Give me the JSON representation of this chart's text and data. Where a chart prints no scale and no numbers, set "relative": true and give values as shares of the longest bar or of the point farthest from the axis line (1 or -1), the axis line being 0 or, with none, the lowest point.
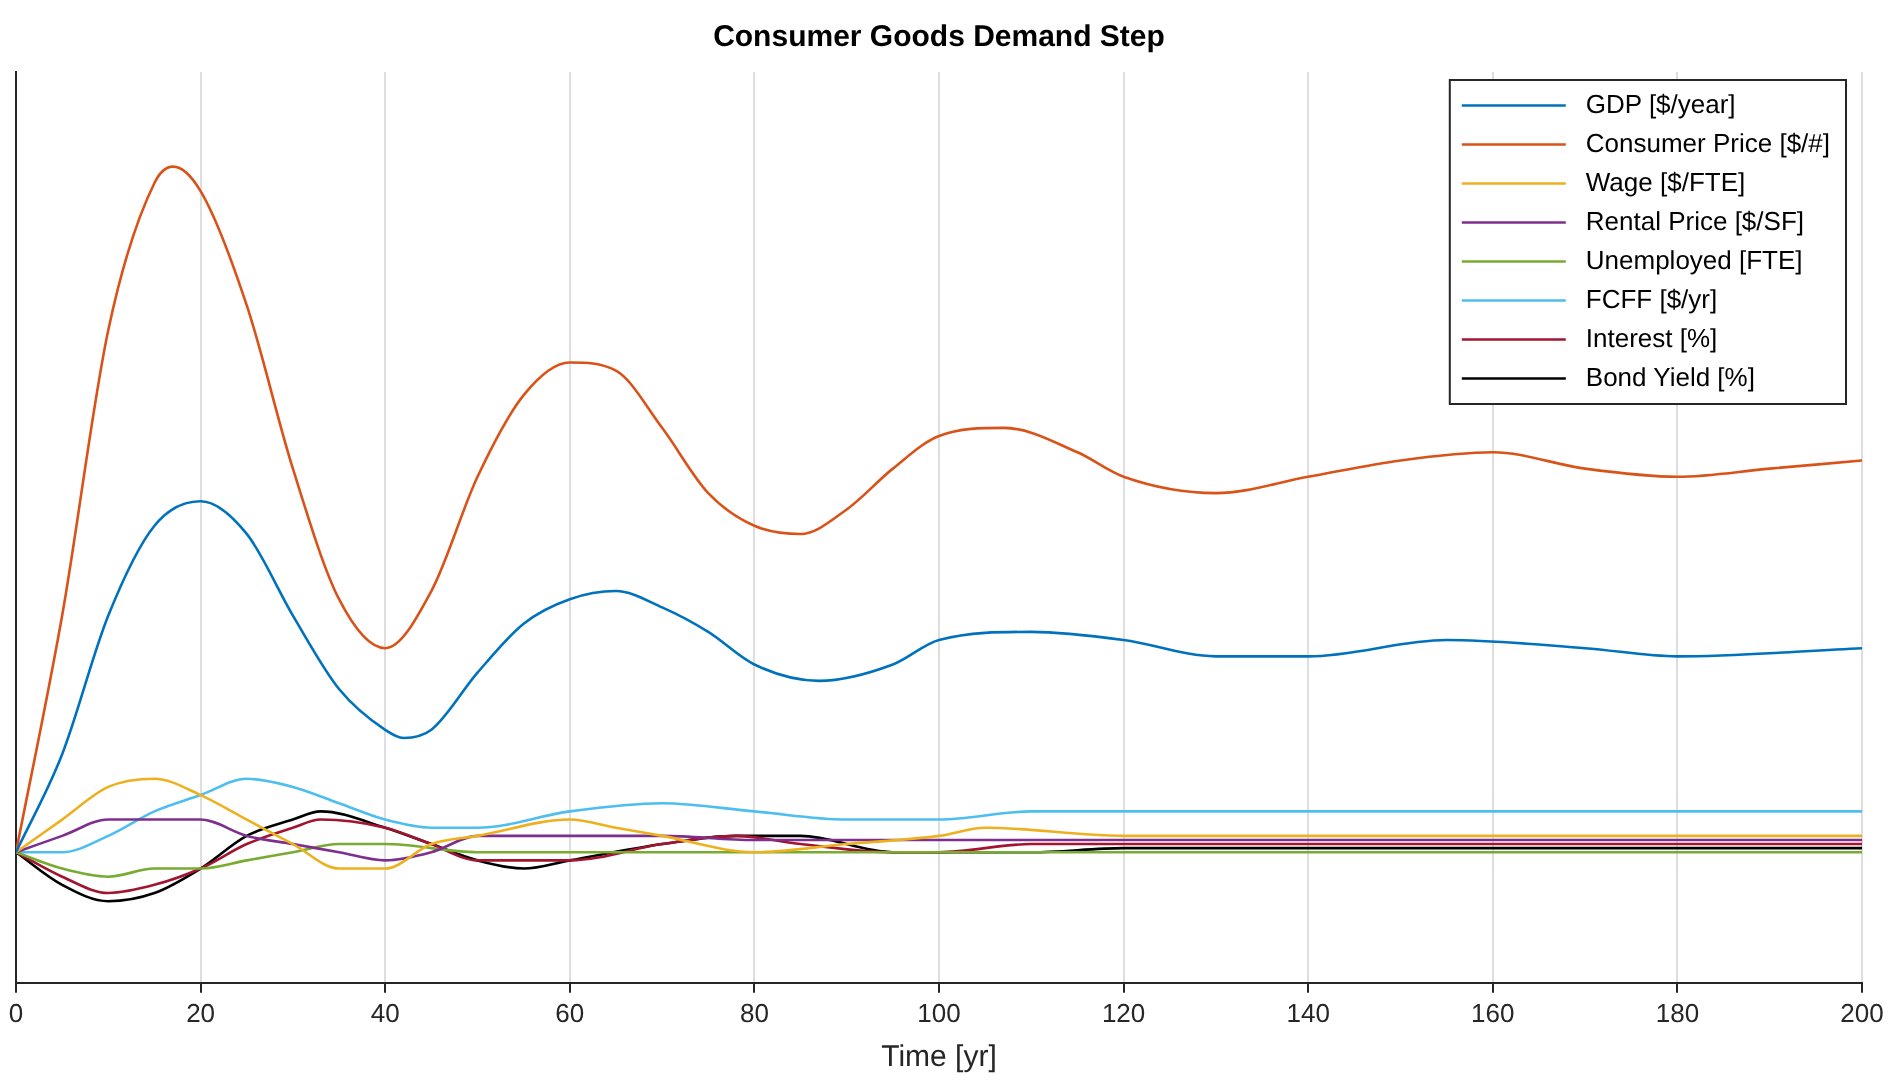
{
  "chart_data": {
    "type": "line",
    "title": "Consumer Goods Demand Step",
    "xlabel": "Time [yr]",
    "relative": true,
    "xlim": [
      0,
      200
    ],
    "xticks": [
      0,
      20,
      40,
      60,
      80,
      100,
      120,
      140,
      160,
      180,
      200
    ],
    "grid": "x",
    "legend": "top right",
    "marker": "none",
    "line_style": "solid",
    "series": [
      {
        "name": "GDP [$/year]",
        "color": "#0072bd",
        "x": [
          0,
          5,
          10,
          15,
          20,
          25,
          30,
          35,
          40,
          42,
          45,
          50,
          55,
          60,
          65,
          70,
          75,
          80,
          87,
          95,
          100,
          110,
          120,
          130,
          140,
          155,
          170,
          180,
          200
        ],
        "values": [
          0.16,
          0.28,
          0.45,
          0.56,
          0.59,
          0.55,
          0.45,
          0.36,
          0.31,
          0.3,
          0.31,
          0.38,
          0.44,
          0.47,
          0.48,
          0.46,
          0.43,
          0.39,
          0.37,
          0.39,
          0.42,
          0.43,
          0.42,
          0.4,
          0.4,
          0.42,
          0.41,
          0.4,
          0.41
        ]
      },
      {
        "name": "Consumer Price [$/#]",
        "color": "#d95319",
        "x": [
          0,
          5,
          10,
          15,
          17,
          20,
          25,
          30,
          35,
          40,
          45,
          50,
          55,
          60,
          65,
          70,
          75,
          80,
          85,
          90,
          95,
          100,
          107,
          115,
          120,
          130,
          140,
          150,
          160,
          170,
          180,
          190,
          200
        ],
        "values": [
          0.16,
          0.45,
          0.8,
          0.98,
          1,
          0.97,
          0.83,
          0.63,
          0.47,
          0.41,
          0.48,
          0.62,
          0.72,
          0.76,
          0.75,
          0.68,
          0.6,
          0.56,
          0.55,
          0.58,
          0.63,
          0.67,
          0.68,
          0.65,
          0.62,
          0.6,
          0.62,
          0.64,
          0.65,
          0.63,
          0.62,
          0.63,
          0.64
        ]
      },
      {
        "name": "Wage [$/FTE]",
        "color": "#edb120",
        "x": [
          0,
          5,
          10,
          15,
          20,
          25,
          30,
          35,
          37,
          40,
          45,
          50,
          60,
          65,
          70,
          80,
          90,
          100,
          105,
          120,
          140,
          160,
          200
        ],
        "values": [
          0.16,
          0.2,
          0.24,
          0.25,
          0.23,
          0.2,
          0.17,
          0.14,
          0.14,
          0.14,
          0.17,
          0.18,
          0.2,
          0.19,
          0.18,
          0.16,
          0.17,
          0.18,
          0.19,
          0.18,
          0.18,
          0.18,
          0.18
        ]
      },
      {
        "name": "Rental Price [$/SF]",
        "color": "#7e2f8e",
        "x": [
          0,
          5,
          10,
          15,
          20,
          25,
          30,
          35,
          40,
          45,
          50,
          60,
          70,
          80,
          90,
          100,
          120,
          150,
          200
        ],
        "values": [
          0.16,
          0.18,
          0.2,
          0.2,
          0.2,
          0.18,
          0.17,
          0.16,
          0.15,
          0.16,
          0.18,
          0.18,
          0.18,
          0.175,
          0.175,
          0.175,
          0.175,
          0.175,
          0.175
        ]
      },
      {
        "name": "Unemployed [FTE]",
        "color": "#77ac30",
        "x": [
          0,
          5,
          10,
          15,
          20,
          25,
          30,
          35,
          40,
          50,
          60,
          70,
          80,
          100,
          120,
          200
        ],
        "values": [
          0.16,
          0.14,
          0.13,
          0.14,
          0.14,
          0.15,
          0.16,
          0.17,
          0.17,
          0.16,
          0.16,
          0.16,
          0.16,
          0.16,
          0.16,
          0.16
        ]
      },
      {
        "name": "FCFF [$/yr]",
        "color": "#4dbeee",
        "x": [
          0,
          5,
          10,
          15,
          20,
          25,
          30,
          35,
          40,
          45,
          50,
          60,
          70,
          80,
          90,
          100,
          110,
          130,
          150,
          200
        ],
        "values": [
          0.16,
          0.16,
          0.18,
          0.21,
          0.23,
          0.25,
          0.24,
          0.22,
          0.2,
          0.19,
          0.19,
          0.21,
          0.22,
          0.21,
          0.2,
          0.2,
          0.21,
          0.21,
          0.21,
          0.21
        ]
      },
      {
        "name": "Interest [%]",
        "color": "#a2142f",
        "x": [
          0,
          5,
          10,
          15,
          20,
          25,
          30,
          33,
          40,
          45,
          50,
          55,
          60,
          70,
          78,
          85,
          95,
          100,
          110,
          120,
          140,
          160,
          180,
          200
        ],
        "values": [
          0.16,
          0.13,
          0.11,
          0.12,
          0.14,
          0.17,
          0.19,
          0.2,
          0.19,
          0.17,
          0.15,
          0.15,
          0.15,
          0.17,
          0.18,
          0.17,
          0.16,
          0.16,
          0.17,
          0.17,
          0.17,
          0.17,
          0.17,
          0.17
        ]
      },
      {
        "name": "Bond Yield [%]",
        "color": "#000000",
        "x": [
          0,
          5,
          10,
          15,
          20,
          25,
          30,
          33,
          40,
          45,
          50,
          55,
          60,
          70,
          78,
          85,
          95,
          100,
          110,
          120,
          140,
          160,
          180,
          200
        ],
        "values": [
          0.16,
          0.12,
          0.1,
          0.11,
          0.14,
          0.18,
          0.2,
          0.21,
          0.19,
          0.17,
          0.15,
          0.14,
          0.15,
          0.17,
          0.18,
          0.18,
          0.16,
          0.16,
          0.16,
          0.165,
          0.165,
          0.165,
          0.165,
          0.165
        ]
      }
    ]
  }
}
